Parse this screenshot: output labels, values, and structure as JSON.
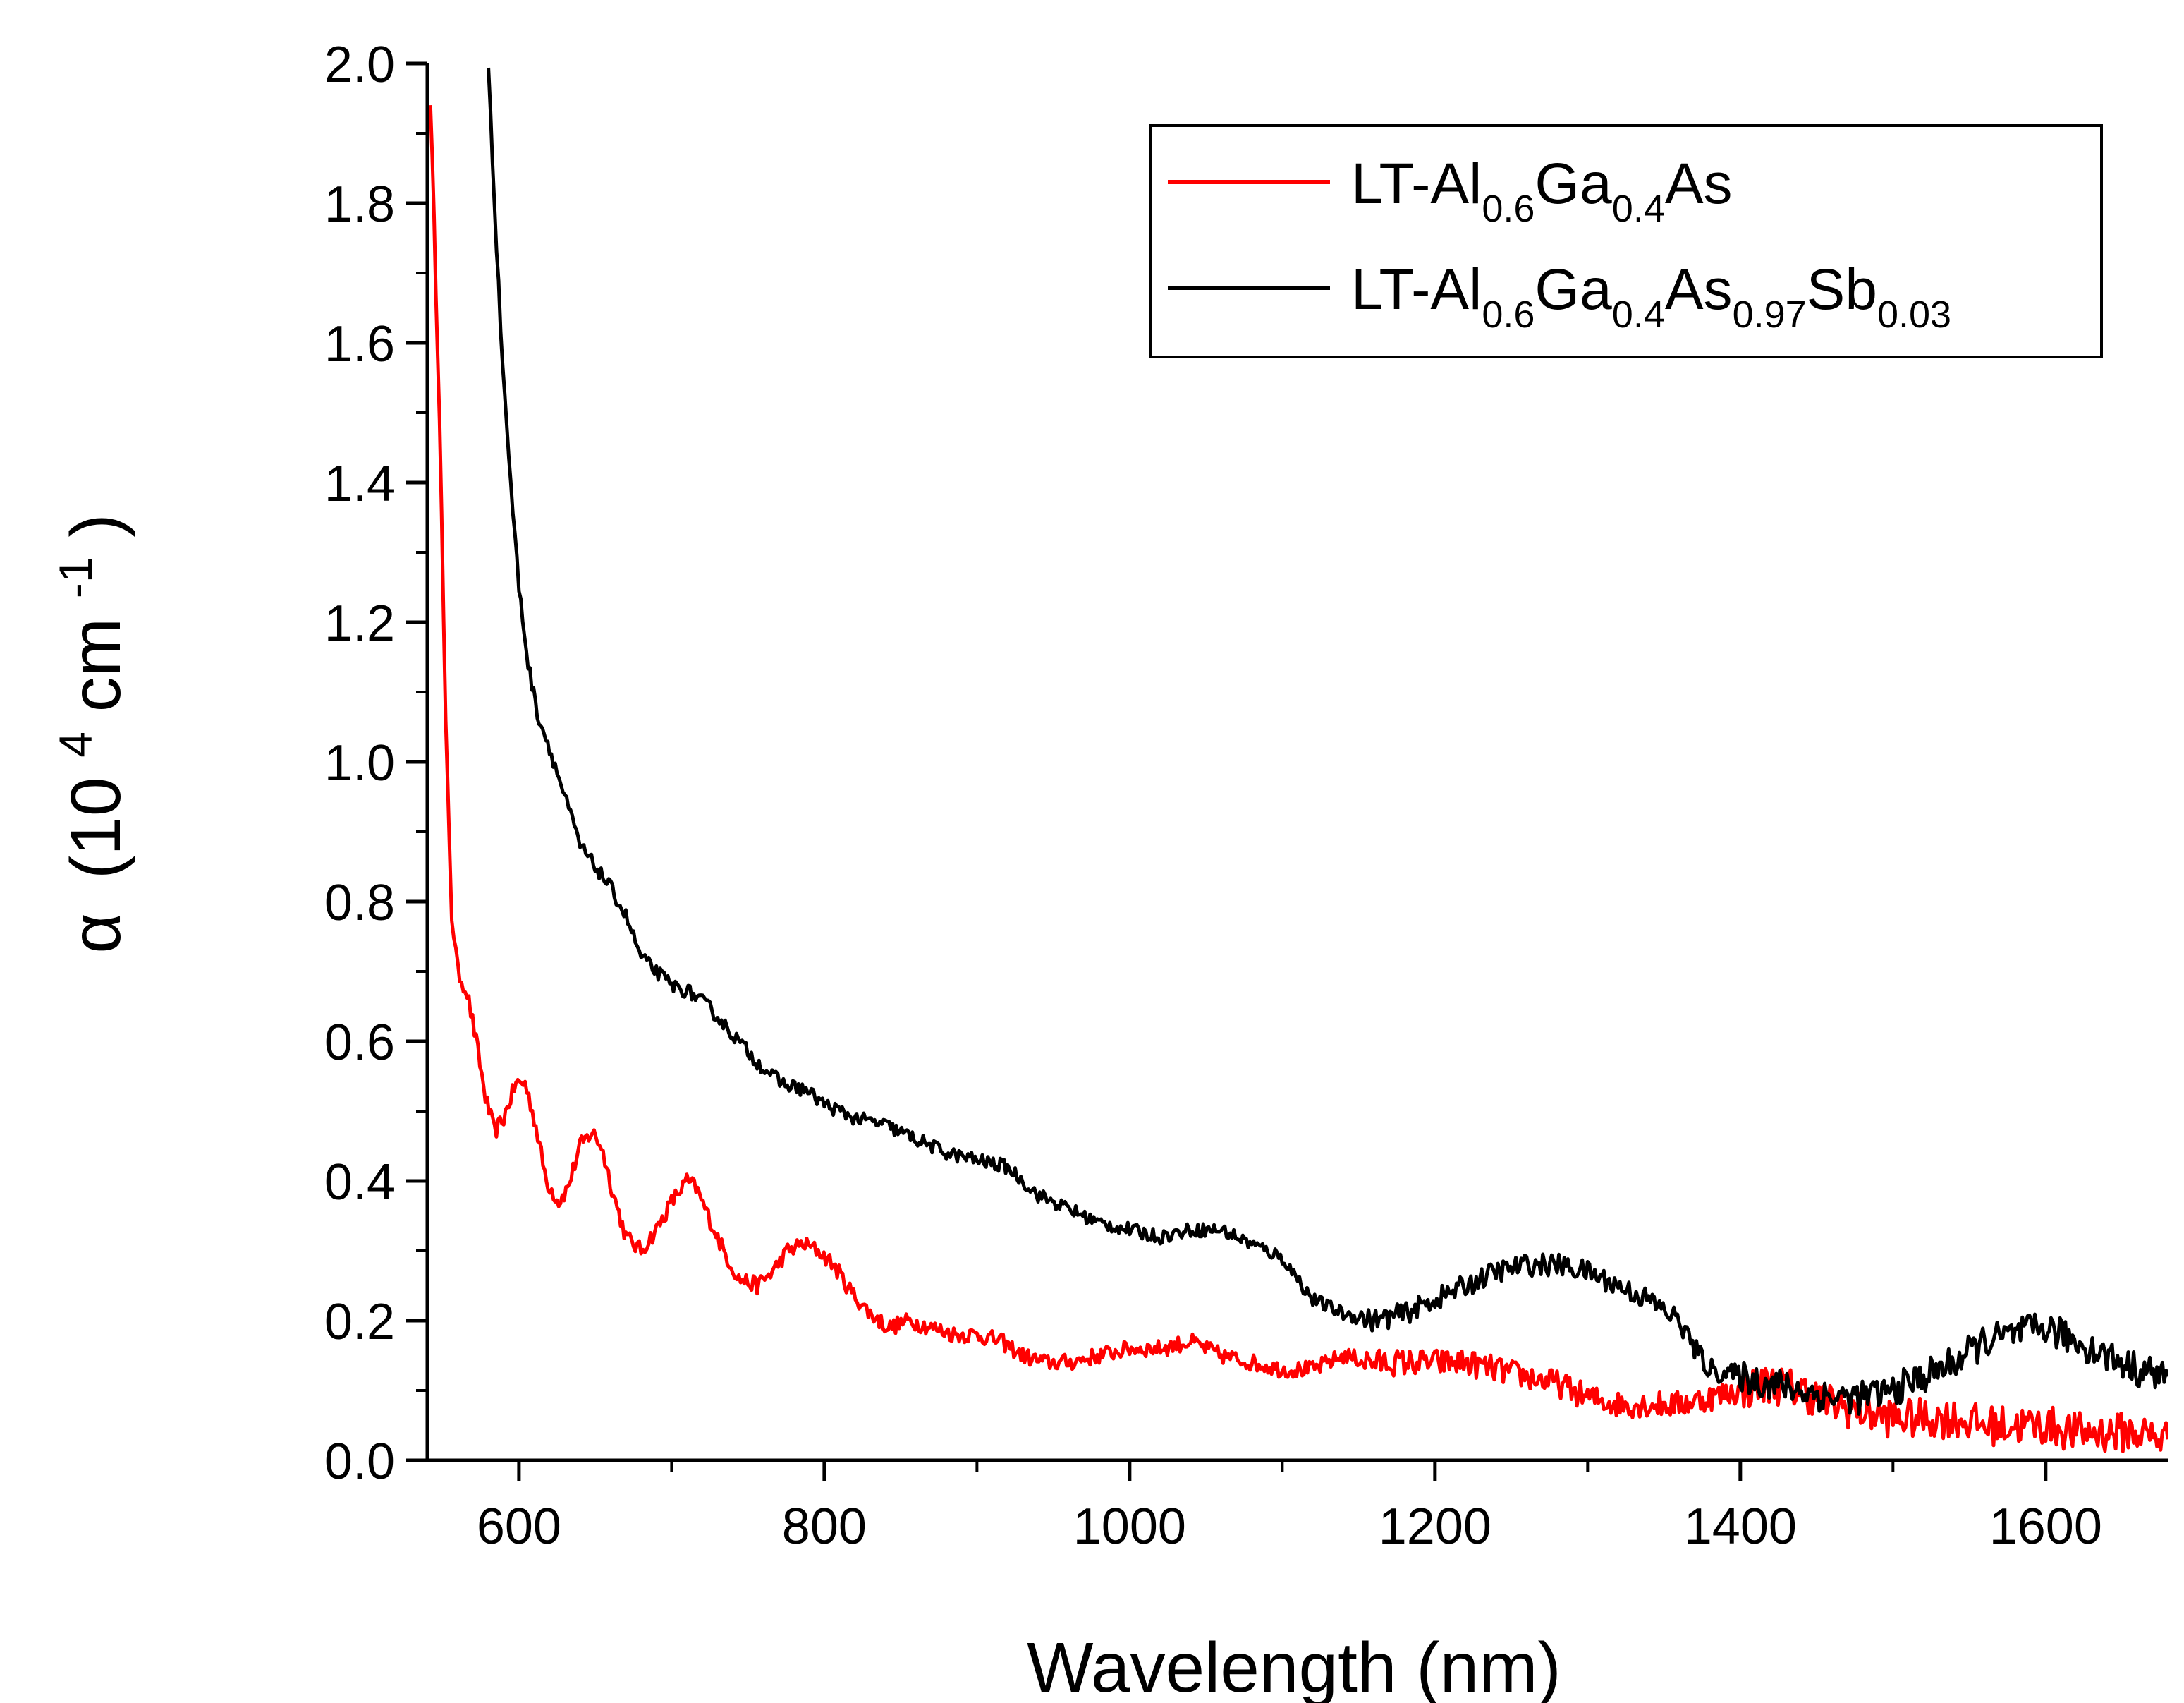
{
  "chart_data": {
    "type": "line",
    "title": "",
    "xlabel": "Wavelength (nm)",
    "ylabel_symbol": "α",
    "ylabel_open": "(10",
    "ylabel_exp1": "4",
    "ylabel_unit": " cm",
    "ylabel_exp2": "-1",
    "ylabel_close": ")",
    "xlim": [
      540,
      1680
    ],
    "ylim": [
      0.0,
      2.0
    ],
    "x_ticks": [
      600,
      800,
      1000,
      1200,
      1400,
      1600
    ],
    "x_tick_labels": [
      "600",
      "800",
      "1000",
      "1200",
      "1400",
      "1600"
    ],
    "y_ticks": [
      0.0,
      0.2,
      0.4,
      0.6,
      0.8,
      1.0,
      1.2,
      1.4,
      1.6,
      1.8,
      2.0
    ],
    "y_tick_labels": [
      "0.0",
      "0.2",
      "0.4",
      "0.6",
      "0.8",
      "1.0",
      "1.2",
      "1.4",
      "1.6",
      "1.8",
      "2.0"
    ],
    "grid": false,
    "legend_position": "top-right",
    "series": [
      {
        "name": "LT-Al0.6Ga0.4As",
        "legend_parts": [
          {
            "t": "LT-Al",
            "sub": false
          },
          {
            "t": "0.6",
            "sub": true
          },
          {
            "t": "Ga",
            "sub": false
          },
          {
            "t": "0.4",
            "sub": true
          },
          {
            "t": "As",
            "sub": false
          }
        ],
        "color": "#ff0000",
        "noise": 0.012,
        "x": [
          542,
          548,
          552,
          556,
          560,
          566,
          572,
          578,
          584,
          590,
          598,
          604,
          610,
          618,
          626,
          632,
          640,
          648,
          654,
          662,
          670,
          680,
          690,
          700,
          710,
          716,
          724,
          734,
          744,
          756,
          766,
          776,
          786,
          796,
          806,
          818,
          830,
          842,
          856,
          870,
          886,
          900,
          916,
          930,
          944,
          960,
          980,
          1000,
          1020,
          1040,
          1060,
          1080,
          1100,
          1120,
          1140,
          1160,
          1180,
          1200,
          1220,
          1240,
          1260,
          1280,
          1300,
          1320,
          1340,
          1360,
          1380,
          1400,
          1420,
          1440,
          1460,
          1480,
          1500,
          1520,
          1540,
          1560,
          1580,
          1600,
          1620,
          1640,
          1660,
          1680
        ],
        "y": [
          1.95,
          1.5,
          1.05,
          0.78,
          0.7,
          0.67,
          0.6,
          0.52,
          0.47,
          0.49,
          0.54,
          0.54,
          0.49,
          0.4,
          0.37,
          0.39,
          0.45,
          0.47,
          0.45,
          0.38,
          0.32,
          0.3,
          0.33,
          0.37,
          0.4,
          0.39,
          0.35,
          0.3,
          0.26,
          0.25,
          0.27,
          0.3,
          0.31,
          0.3,
          0.28,
          0.24,
          0.21,
          0.19,
          0.2,
          0.19,
          0.18,
          0.18,
          0.17,
          0.15,
          0.14,
          0.14,
          0.15,
          0.16,
          0.16,
          0.17,
          0.15,
          0.14,
          0.13,
          0.13,
          0.15,
          0.14,
          0.14,
          0.14,
          0.14,
          0.13,
          0.12,
          0.11,
          0.09,
          0.08,
          0.08,
          0.08,
          0.09,
          0.1,
          0.11,
          0.1,
          0.08,
          0.07,
          0.06,
          0.06,
          0.06,
          0.05,
          0.05,
          0.05,
          0.04,
          0.04,
          0.04,
          0.03
        ]
      },
      {
        "name": "LT-Al0.6Ga0.4As0.97Sb0.03",
        "legend_parts": [
          {
            "t": "LT-Al",
            "sub": false
          },
          {
            "t": "0.6",
            "sub": true
          },
          {
            "t": "Ga",
            "sub": false
          },
          {
            "t": "0.4",
            "sub": true
          },
          {
            "t": "As",
            "sub": false
          },
          {
            "t": "0.97",
            "sub": true
          },
          {
            "t": "Sb",
            "sub": false
          },
          {
            "t": "0.03",
            "sub": true
          }
        ],
        "color": "#000000",
        "noise": 0.01,
        "x": [
          580,
          584,
          588,
          592,
          596,
          600,
          606,
          612,
          620,
          630,
          640,
          650,
          660,
          670,
          680,
          690,
          700,
          712,
          724,
          740,
          756,
          772,
          788,
          800,
          820,
          840,
          860,
          880,
          900,
          920,
          930,
          940,
          960,
          980,
          1000,
          1020,
          1040,
          1060,
          1080,
          1100,
          1110,
          1120,
          1140,
          1160,
          1180,
          1200,
          1220,
          1240,
          1260,
          1280,
          1300,
          1320,
          1340,
          1360,
          1370,
          1380,
          1400,
          1420,
          1440,
          1460,
          1480,
          1500,
          1520,
          1540,
          1560,
          1580,
          1600,
          1620,
          1640,
          1660,
          1680
        ],
        "y": [
          2.0,
          1.8,
          1.62,
          1.48,
          1.36,
          1.25,
          1.14,
          1.07,
          1.02,
          0.95,
          0.88,
          0.85,
          0.82,
          0.78,
          0.72,
          0.7,
          0.68,
          0.67,
          0.65,
          0.61,
          0.57,
          0.54,
          0.53,
          0.51,
          0.49,
          0.48,
          0.46,
          0.44,
          0.43,
          0.42,
          0.4,
          0.38,
          0.36,
          0.34,
          0.33,
          0.32,
          0.33,
          0.33,
          0.31,
          0.29,
          0.26,
          0.23,
          0.21,
          0.2,
          0.21,
          0.23,
          0.25,
          0.27,
          0.28,
          0.28,
          0.27,
          0.25,
          0.23,
          0.2,
          0.16,
          0.13,
          0.12,
          0.11,
          0.1,
          0.09,
          0.09,
          0.1,
          0.12,
          0.14,
          0.17,
          0.18,
          0.19,
          0.17,
          0.15,
          0.13,
          0.12
        ]
      }
    ]
  }
}
